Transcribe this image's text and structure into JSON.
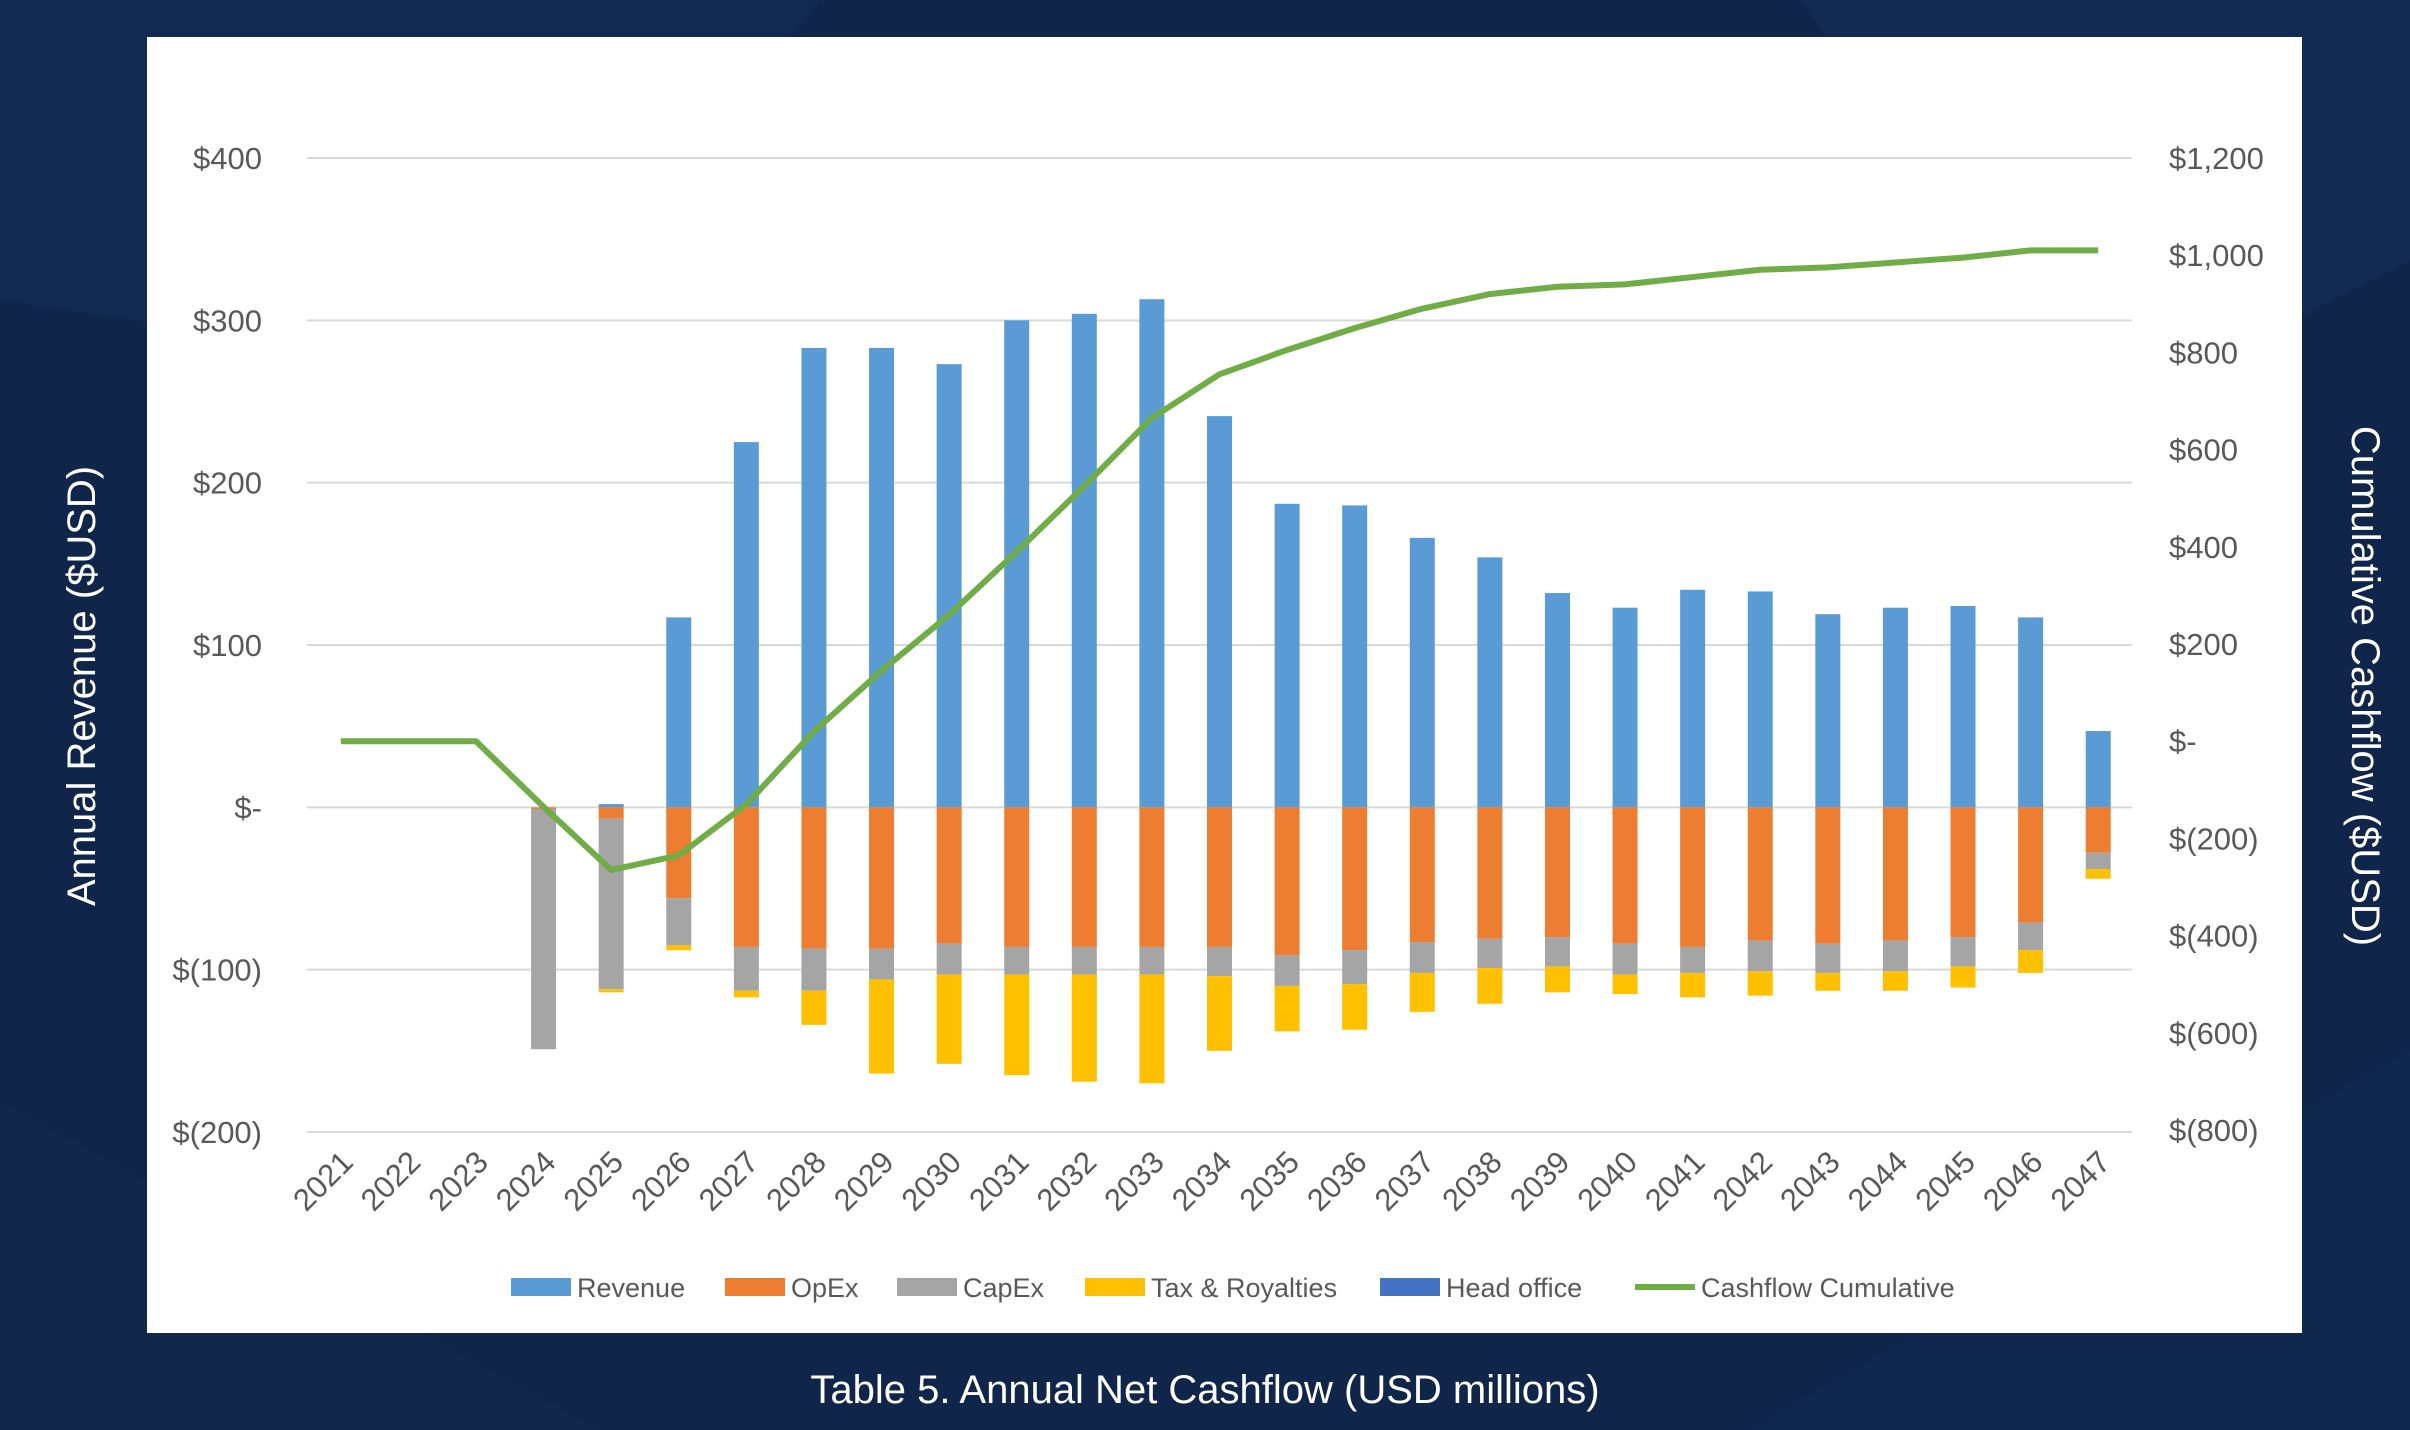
{
  "caption": "Table 5. Annual Net Cashflow (USD millions)",
  "colors": {
    "background": "#0f2549",
    "panel": "#ffffff",
    "revenue": "#5b9bd5",
    "opex": "#ed7d31",
    "capex": "#a5a5a5",
    "tax": "#ffc000",
    "head_office": "#4472c4",
    "cumulative": "#70ad47",
    "grid": "#d9d9d9",
    "tick_text": "#595959"
  },
  "chart_data": {
    "type": "bar",
    "stacked": true,
    "ylabel": "Annual Revenue ($USD)",
    "y2label": "Cumulative Cashflow ($USD)",
    "ylim": [
      -200,
      400
    ],
    "y2lim": [
      -800,
      1200
    ],
    "yticks": [
      {
        "value": 400,
        "label": "$400"
      },
      {
        "value": 300,
        "label": "$300"
      },
      {
        "value": 200,
        "label": "$200"
      },
      {
        "value": 100,
        "label": "$100"
      },
      {
        "value": 0,
        "label": "$-"
      },
      {
        "value": -100,
        "label": "$(100)"
      },
      {
        "value": -200,
        "label": "$(200)"
      }
    ],
    "y2ticks": [
      {
        "value": 1200,
        "label": "$1,200"
      },
      {
        "value": 1000,
        "label": "$1,000"
      },
      {
        "value": 800,
        "label": "$800"
      },
      {
        "value": 600,
        "label": "$600"
      },
      {
        "value": 400,
        "label": "$400"
      },
      {
        "value": 200,
        "label": "$200"
      },
      {
        "value": 0,
        "label": "$-"
      },
      {
        "value": -200,
        "label": "$(200)"
      },
      {
        "value": -400,
        "label": "$(400)"
      },
      {
        "value": -600,
        "label": "$(600)"
      },
      {
        "value": -800,
        "label": "$(800)"
      }
    ],
    "grid": true,
    "legend_position": "bottom",
    "categories": [
      "2021",
      "2022",
      "2023",
      "2024",
      "2025",
      "2026",
      "2027",
      "2028",
      "2029",
      "2030",
      "2031",
      "2032",
      "2033",
      "2034",
      "2035",
      "2036",
      "2037",
      "2038",
      "2039",
      "2040",
      "2041",
      "2042",
      "2043",
      "2044",
      "2045",
      "2046",
      "2047"
    ],
    "series": [
      {
        "name": "Revenue",
        "key": "revenue",
        "axis": "left",
        "kind": "bar",
        "values": [
          0,
          0,
          0,
          0,
          2,
          117,
          225,
          283,
          283,
          273,
          300,
          304,
          313,
          241,
          187,
          186,
          166,
          154,
          132,
          123,
          134,
          133,
          119,
          123,
          124,
          117,
          47
        ]
      },
      {
        "name": "OpEx",
        "key": "opex",
        "axis": "left",
        "kind": "bar",
        "values": [
          0,
          0,
          0,
          -1,
          -7,
          -56,
          -86,
          -87,
          -87,
          -84,
          -86,
          -86,
          -86,
          -86,
          -91,
          -88,
          -83,
          -81,
          -80,
          -84,
          -86,
          -82,
          -84,
          -82,
          -80,
          -71,
          -28
        ]
      },
      {
        "name": "CapEx",
        "key": "capex",
        "axis": "left",
        "kind": "bar",
        "values": [
          0,
          0,
          0,
          -148,
          -105,
          -29,
          -27,
          -26,
          -19,
          -19,
          -17,
          -17,
          -17,
          -18,
          -19,
          -21,
          -19,
          -18,
          -18,
          -19,
          -16,
          -19,
          -18,
          -19,
          -18,
          -17,
          -10
        ]
      },
      {
        "name": "Tax & Royalties",
        "key": "tax",
        "axis": "left",
        "kind": "bar",
        "values": [
          0,
          0,
          0,
          0,
          -2,
          -3,
          -4,
          -21,
          -58,
          -55,
          -62,
          -66,
          -67,
          -46,
          -28,
          -28,
          -24,
          -22,
          -16,
          -12,
          -15,
          -15,
          -11,
          -12,
          -13,
          -14,
          -6
        ]
      },
      {
        "name": "Head office",
        "key": "head_office",
        "axis": "left",
        "kind": "bar",
        "values": [
          0,
          0,
          0,
          0,
          0,
          0,
          0,
          0,
          0,
          0,
          0,
          0,
          0,
          0,
          0,
          0,
          0,
          0,
          0,
          0,
          0,
          0,
          0,
          0,
          0,
          0,
          0
        ]
      },
      {
        "name": "Cashflow Cumulative",
        "key": "cumulative",
        "axis": "right",
        "kind": "line",
        "values": [
          0,
          0,
          0,
          -135,
          -265,
          -235,
          -130,
          20,
          145,
          260,
          390,
          525,
          665,
          755,
          805,
          850,
          890,
          920,
          935,
          940,
          955,
          970,
          975,
          985,
          995,
          1010,
          1010
        ]
      }
    ]
  }
}
